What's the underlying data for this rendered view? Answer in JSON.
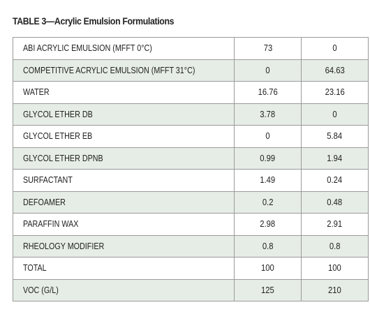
{
  "title": "TABLE 3—Acrylic Emulsion Formulations",
  "rows": [
    {
      "label": "ABI ACRYLIC EMULSION (MFFT 0°C)",
      "a": "73",
      "b": "0"
    },
    {
      "label": "COMPETITIVE ACRYLIC EMULSION (MFFT 31°C)",
      "a": "0",
      "b": "64.63"
    },
    {
      "label": "WATER",
      "a": "16.76",
      "b": "23.16"
    },
    {
      "label": "GLYCOL ETHER DB",
      "a": "3.78",
      "b": "0"
    },
    {
      "label": "GLYCOL ETHER EB",
      "a": "0",
      "b": "5.84"
    },
    {
      "label": "GLYCOL ETHER DPNB",
      "a": "0.99",
      "b": "1.94"
    },
    {
      "label": "SURFACTANT",
      "a": "1.49",
      "b": "0.24"
    },
    {
      "label": "DEFOAMER",
      "a": "0.2",
      "b": "0.48"
    },
    {
      "label": "PARAFFIN WAX",
      "a": "2.98",
      "b": "2.91"
    },
    {
      "label": "RHEOLOGY MODIFIER",
      "a": "0.8",
      "b": "0.8"
    },
    {
      "label": "TOTAL",
      "a": "100",
      "b": "100"
    },
    {
      "label": "VOC (G/L)",
      "a": "125",
      "b": "210"
    }
  ],
  "colors": {
    "stripe": "#e6ede6",
    "border": "#9a9a9a",
    "text": "#222222"
  }
}
